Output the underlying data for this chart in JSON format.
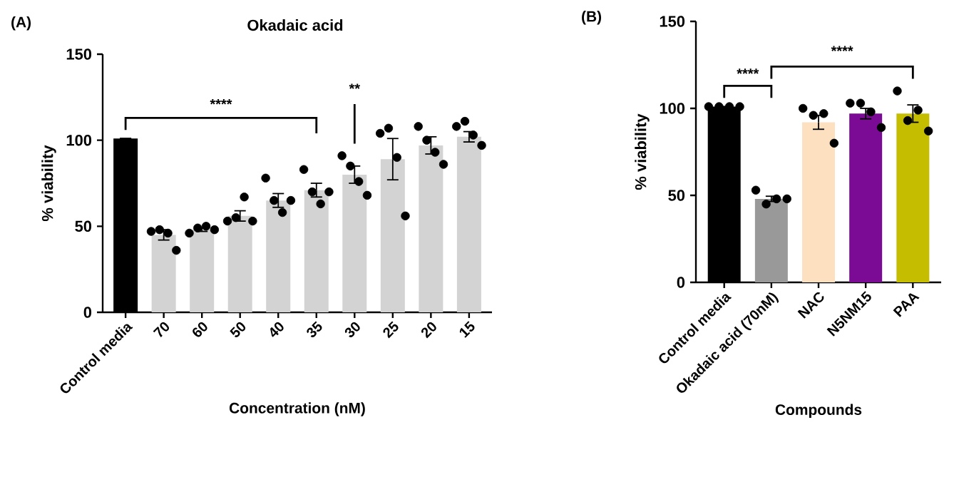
{
  "chart_data": [
    {
      "type": "bar",
      "title": "Okadaic acid",
      "xlabel": "Concentration (nM)",
      "ylabel": "% viability",
      "categories": [
        "Control media",
        "70",
        "60",
        "50",
        "40",
        "35",
        "30",
        "25",
        "20",
        "15"
      ],
      "ylim": [
        0,
        150
      ],
      "yticks": [
        0,
        50,
        100,
        150
      ],
      "annotations": [
        "(A)",
        "****",
        "**"
      ],
      "series": [
        {
          "type": "bar",
          "values": [
            101,
            45,
            48,
            56,
            65,
            71,
            80,
            89,
            97,
            102
          ],
          "colors": [
            "#000000",
            "#d3d3d3",
            "#d3d3d3",
            "#d3d3d3",
            "#d3d3d3",
            "#d3d3d3",
            "#d3d3d3",
            "#d3d3d3",
            "#d3d3d3",
            "#d3d3d3"
          ],
          "errors": [
            0,
            3,
            1,
            3,
            4,
            4,
            5,
            12,
            5,
            3
          ]
        },
        {
          "type": "scatter",
          "color": "#000000",
          "marker": "circle",
          "x": [
            "Control media",
            "Control media",
            "Control media",
            "Control media",
            "70",
            "70",
            "70",
            "70",
            "60",
            "60",
            "60",
            "60",
            "50",
            "50",
            "50",
            "50",
            "40",
            "40",
            "40",
            "40",
            "35",
            "35",
            "35",
            "35",
            "30",
            "30",
            "30",
            "30",
            "25",
            "25",
            "25",
            "25",
            "20",
            "20",
            "20",
            "20",
            "15",
            "15",
            "15",
            "15"
          ],
          "values": [
            null,
            null,
            null,
            null,
            47,
            48,
            46,
            36,
            46,
            49,
            50,
            48,
            53,
            55,
            67,
            53,
            78,
            65,
            58,
            65,
            83,
            70,
            63,
            70,
            91,
            85,
            76,
            68,
            104,
            107,
            90,
            56,
            108,
            100,
            93,
            86,
            108,
            111,
            103,
            97
          ]
        }
      ]
    },
    {
      "type": "bar",
      "xlabel": "Compounds",
      "ylabel": "% viability",
      "categories": [
        "Control media",
        "Okadaic acid (70nM)",
        "NAC",
        "N5NM15",
        "PAA"
      ],
      "ylim": [
        0,
        150
      ],
      "yticks": [
        0,
        50,
        100,
        150
      ],
      "annotations": [
        "(B)",
        "****",
        "****"
      ],
      "series": [
        {
          "type": "bar",
          "values": [
            101,
            48,
            92,
            97,
            97
          ],
          "colors": [
            "#000000",
            "#999999",
            "#fde0c0",
            "#7b0a94",
            "#c4bd00"
          ],
          "errors": [
            0,
            1.5,
            4,
            3,
            5
          ]
        },
        {
          "type": "scatter",
          "color": "#000000",
          "marker": "circle",
          "x": [
            "Control media",
            "Control media",
            "Control media",
            "Control media",
            "Okadaic acid (70nM)",
            "Okadaic acid (70nM)",
            "Okadaic acid (70nM)",
            "Okadaic acid (70nM)",
            "NAC",
            "NAC",
            "NAC",
            "NAC",
            "N5NM15",
            "N5NM15",
            "N5NM15",
            "N5NM15",
            "PAA",
            "PAA",
            "PAA",
            "PAA"
          ],
          "values": [
            101,
            101,
            101,
            101,
            53,
            45,
            48,
            48,
            100,
            96,
            97,
            80,
            103,
            103,
            98,
            89,
            110,
            93,
            99,
            87
          ]
        }
      ]
    }
  ]
}
